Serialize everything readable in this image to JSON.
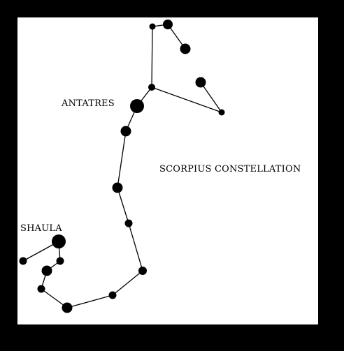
{
  "colors": {
    "background": "#000000",
    "panel": "#ffffff",
    "ink": "#000000"
  },
  "labels": {
    "antares": "ANTATRES",
    "shaula": "SHAULA",
    "title": "SCORPIUS CONSTELLATION"
  },
  "stars": [
    {
      "name": "star-top-left"
    },
    {
      "name": "star-top"
    },
    {
      "name": "star-upper-right"
    },
    {
      "name": "star-claw-right"
    },
    {
      "name": "star-claw-tip"
    },
    {
      "name": "star-junction"
    },
    {
      "name": "star-antares"
    },
    {
      "name": "star-body-1"
    },
    {
      "name": "star-body-2"
    },
    {
      "name": "star-body-3"
    },
    {
      "name": "star-tail-1"
    },
    {
      "name": "star-tail-2"
    },
    {
      "name": "star-tail-3"
    },
    {
      "name": "star-tail-4"
    },
    {
      "name": "star-tail-5"
    },
    {
      "name": "star-tail-6"
    },
    {
      "name": "star-tail-7"
    },
    {
      "name": "star-shaula"
    },
    {
      "name": "star-shaula-left"
    }
  ]
}
